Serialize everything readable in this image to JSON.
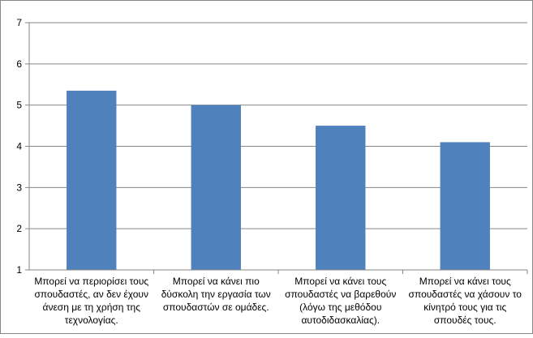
{
  "chart_data": {
    "type": "bar",
    "title": "",
    "xlabel": "",
    "ylabel": "",
    "ylim": [
      1,
      7
    ],
    "yticks": [
      1,
      2,
      3,
      4,
      5,
      6,
      7
    ],
    "grid": true,
    "legend": "none",
    "bar_color": "#4f81bd",
    "categories": [
      [
        "Μπορεί να περιορίσει τους",
        "σπουδαστές, αν δεν έχουν",
        "άνεση με τη χρήση της",
        "τεχνολογίας."
      ],
      [
        "Μπορεί να κάνει πιο",
        "δύσκολη την εργασία των",
        "σπουδαστών σε ομάδες."
      ],
      [
        "Μπορεί να κάνει τους",
        "σπουδαστές να βαρεθούν",
        "(λόγω της μεθόδου",
        "αυτοδιδασκαλίας)."
      ],
      [
        "Μπορεί να κάνει τους",
        "σπουδαστές να χάσουν το",
        "κίνητρό τους για τις",
        "σπουδές τους."
      ]
    ],
    "values": [
      5.35,
      5.0,
      4.5,
      4.1
    ]
  }
}
